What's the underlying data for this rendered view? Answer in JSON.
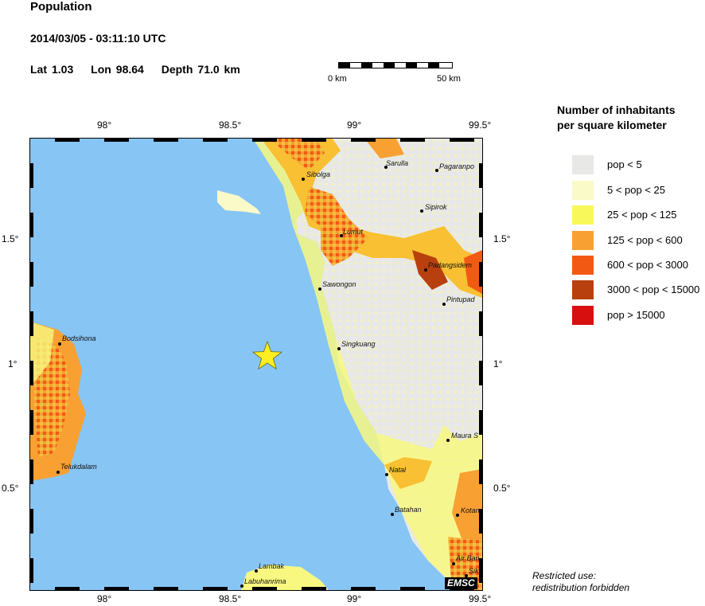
{
  "header": {
    "title": "Population",
    "datetime": "2014/03/05 - 03:11:10 UTC",
    "lat_label": "Lat",
    "lat_value": "1.03",
    "lon_label": "Lon",
    "lon_value": "98.64",
    "depth_label": "Depth",
    "depth_value": "71.0 km"
  },
  "scale_bar": {
    "start_label": "0 km",
    "end_label": "50 km"
  },
  "legend": {
    "title_line1": "Number of inhabitants",
    "title_line2": "per square kilometer",
    "items": [
      {
        "label": "pop < 5",
        "color": "#e8e8e6"
      },
      {
        "label": "5 < pop < 25",
        "color": "#fafac8"
      },
      {
        "label": "25 < pop < 125",
        "color": "#f8f85a"
      },
      {
        "label": "125 < pop < 600",
        "color": "#f8a032"
      },
      {
        "label": "600 < pop < 3000",
        "color": "#f25a14"
      },
      {
        "label": "3000 < pop < 15000",
        "color": "#b8400e"
      },
      {
        "label": "pop > 15000",
        "color": "#d80f0f"
      }
    ]
  },
  "axes": {
    "top_ticks": [
      "98°",
      "98.5°",
      "99°",
      "99.5°"
    ],
    "bottom_ticks": [
      "98°",
      "98.5°",
      "99°",
      "99.5°"
    ],
    "left_ticks": [
      "1.5°",
      "1°",
      "0.5°"
    ],
    "right_ticks": [
      "1.5°",
      "1°",
      "0.5°"
    ]
  },
  "places": [
    "Sibolga",
    "Sarulla",
    "Pagaranpo",
    "Sipirok",
    "Lumut",
    "Padangsidem",
    "Sawongon",
    "Pintupad",
    "Singkuang",
    "Bodsihona",
    "Maura S",
    "Telukdalam",
    "Natal",
    "Batahan",
    "Kotan",
    "Air Ban",
    "Sikc",
    "Lambak",
    "Labuhanrima"
  ],
  "epicenter": {
    "lat": 1.03,
    "lon": 98.64,
    "color": "#ffee22"
  },
  "colors": {
    "sea": "#87c5f5"
  },
  "branding": {
    "logo": "EMSC"
  },
  "footer": {
    "line1": "Restricted use:",
    "line2": "redistribution forbidden"
  }
}
